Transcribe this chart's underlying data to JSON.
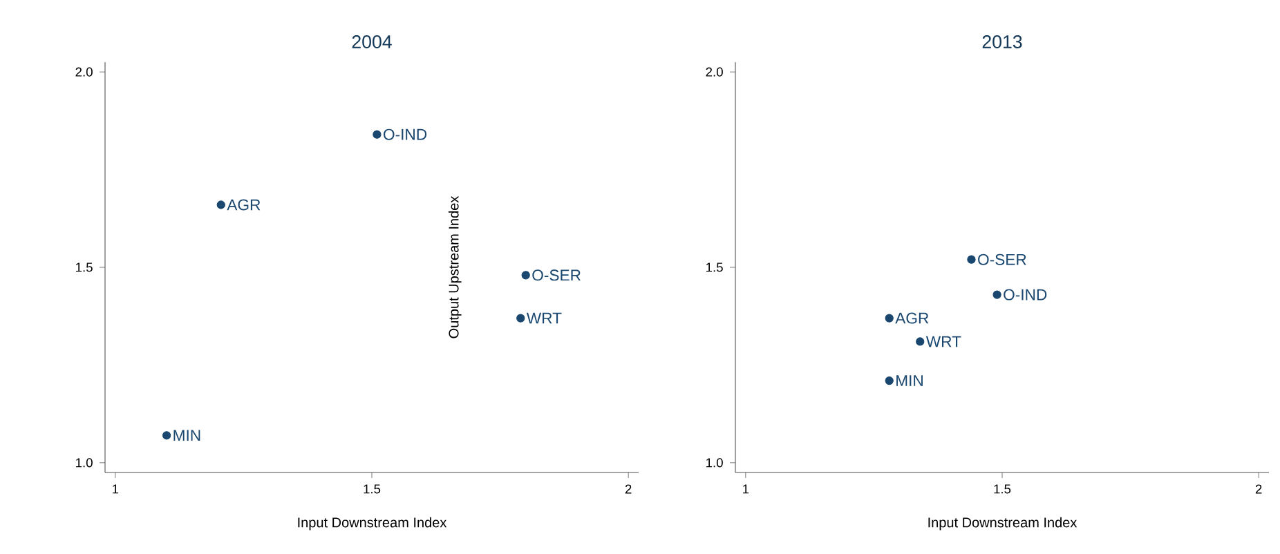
{
  "chart_data": [
    {
      "type": "scatter",
      "title": "2004",
      "xlabel": "Input Downstream Index",
      "ylabel": "Output Upstream Index",
      "marker": "circle",
      "color": "#1a476f",
      "x": [
        1.51,
        1.206,
        1.8,
        1.79,
        1.1
      ],
      "values": [
        1.84,
        1.66,
        1.48,
        1.37,
        1.07
      ],
      "xlim": [
        0.98,
        2.02
      ],
      "ylim": [
        0.975,
        2.025
      ],
      "xticks": [
        1,
        1.5,
        2
      ],
      "yticks": [
        {
          "value": 1,
          "label": "1.0"
        },
        {
          "value": 1.5,
          "label": "1.5"
        },
        {
          "value": 2,
          "label": "2.0"
        }
      ],
      "annotations": [
        {
          "text": "O-IND",
          "x": 1.51,
          "y": 1.84
        },
        {
          "text": "AGR",
          "x": 1.206,
          "y": 1.66
        },
        {
          "text": "O-SER",
          "x": 1.8,
          "y": 1.48
        },
        {
          "text": "WRT",
          "x": 1.79,
          "y": 1.37
        },
        {
          "text": "MIN",
          "x": 1.1,
          "y": 1.07
        }
      ]
    },
    {
      "type": "scatter",
      "title": "2013",
      "xlabel": "Input Downstream Index",
      "marker": "circle",
      "color": "#1a476f",
      "x": [
        1.44,
        1.49,
        1.28,
        1.34,
        1.28
      ],
      "values": [
        1.52,
        1.43,
        1.37,
        1.31,
        1.21
      ],
      "xlim": [
        0.98,
        2.02
      ],
      "ylim": [
        0.975,
        2.025
      ],
      "xticks": [
        1,
        1.5,
        2
      ],
      "yticks": [
        {
          "value": 1,
          "label": "1.0"
        },
        {
          "value": 1.5,
          "label": "1.5"
        },
        {
          "value": 2,
          "label": "2.0"
        }
      ],
      "annotations": [
        {
          "text": "O-SER",
          "x": 1.44,
          "y": 1.52
        },
        {
          "text": "O-IND",
          "x": 1.49,
          "y": 1.43
        },
        {
          "text": "AGR",
          "x": 1.28,
          "y": 1.37
        },
        {
          "text": "WRT",
          "x": 1.34,
          "y": 1.31
        },
        {
          "text": "MIN",
          "x": 1.28,
          "y": 1.21
        }
      ]
    }
  ]
}
